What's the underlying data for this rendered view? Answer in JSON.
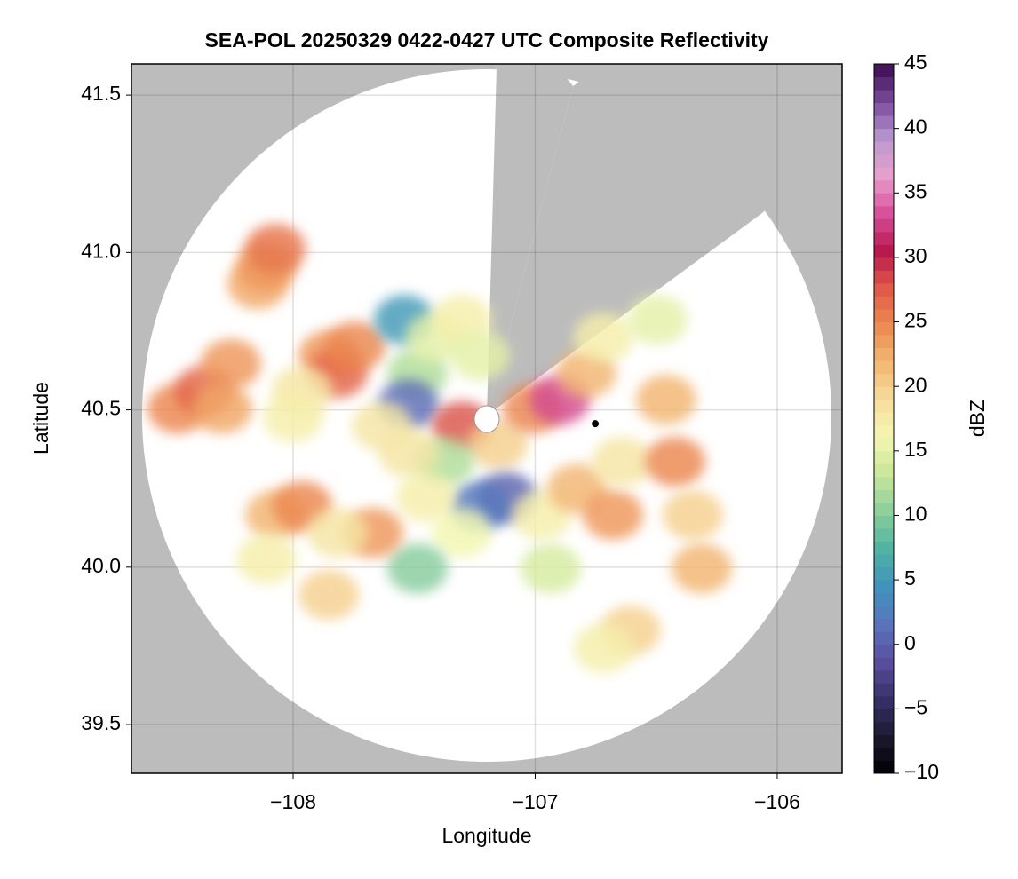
{
  "chart_data": {
    "type": "scatter",
    "title": "SEA-POL 20250329 0422-0427 UTC Composite Reflectivity",
    "x_label": "Longitude",
    "y_label": "Latitude",
    "colorbar_label": "dBZ",
    "xlim": [
      -108.668,
      -105.732
    ],
    "ylim": [
      39.345,
      41.599
    ],
    "xticks": [
      {
        "value": -108,
        "label": "−108"
      },
      {
        "value": -107,
        "label": "−107"
      },
      {
        "value": -106,
        "label": "−106"
      }
    ],
    "yticks": [
      39.5,
      40.0,
      40.5,
      41.0,
      41.5
    ],
    "yticks_labels": [
      "39.5",
      "40.0",
      "40.5",
      "41.0",
      "41.5"
    ],
    "clim": [
      -10,
      45
    ],
    "cticks": [
      {
        "value": -10,
        "label": "−10"
      },
      {
        "value": -5,
        "label": "−5"
      },
      0,
      5,
      10,
      15,
      20,
      25,
      30,
      35,
      40,
      45
    ],
    "colormap": [
      "#000004",
      "#1c1a2e",
      "#35306a",
      "#5a4fa0",
      "#5a74bd",
      "#3f93bd",
      "#4fb2a2",
      "#8bcf9b",
      "#c8e69a",
      "#f4f6b0",
      "#f6dd9c",
      "#f2b872",
      "#ec8a50",
      "#e05a48",
      "#b8184e",
      "#d8509a",
      "#e8a0cc",
      "#b898d0",
      "#7a4a9c",
      "#3a0a50"
    ],
    "grid": true,
    "x": [
      -108.477,
      -108.367,
      -108.257,
      -108.147,
      -108.11,
      -108.073,
      -108.294,
      -107.853,
      -107.817,
      -107.743,
      -107.963,
      -108.0,
      -107.486,
      -107.541,
      -107.413,
      -107.303,
      -107.229,
      -107.523,
      -107.633,
      -107.303,
      -107.156,
      -107.009,
      -106.899,
      -106.789,
      -106.716,
      -107.119,
      -107.229,
      -107.376,
      -107.523,
      -107.45,
      -107.303,
      -107.486,
      -106.972,
      -106.936,
      -106.826,
      -106.679,
      -106.642,
      -106.459,
      -106.422,
      -106.349,
      -106.312,
      -106.495,
      -108.073,
      -107.963,
      -107.67,
      -107.817,
      -107.853,
      -108.11,
      -106.606,
      -106.716,
      -106.752
    ],
    "y": [
      40.504,
      40.561,
      40.646,
      40.899,
      40.956,
      41.012,
      40.504,
      40.673,
      40.617,
      40.702,
      40.561,
      40.476,
      40.617,
      40.786,
      40.73,
      40.786,
      40.673,
      40.518,
      40.448,
      40.448,
      40.391,
      40.504,
      40.532,
      40.617,
      40.73,
      40.222,
      40.194,
      40.335,
      40.363,
      40.222,
      40.109,
      39.996,
      40.166,
      39.996,
      40.25,
      40.166,
      40.335,
      40.532,
      40.335,
      40.166,
      39.996,
      40.786,
      40.166,
      40.194,
      40.109,
      40.109,
      39.912,
      40.025,
      39.799,
      39.743,
      40.456
    ],
    "values": [
      25,
      27,
      24,
      23,
      24,
      26,
      23,
      24,
      27,
      25,
      18,
      17,
      12,
      5,
      15,
      17,
      15,
      1,
      18,
      28,
      20,
      25,
      33,
      22,
      17,
      0,
      2,
      12,
      18,
      17,
      16,
      10,
      17,
      14,
      22,
      24,
      18,
      22,
      25,
      20,
      22,
      15,
      22,
      25,
      24,
      18,
      20,
      17,
      20,
      17,
      -10
    ]
  }
}
